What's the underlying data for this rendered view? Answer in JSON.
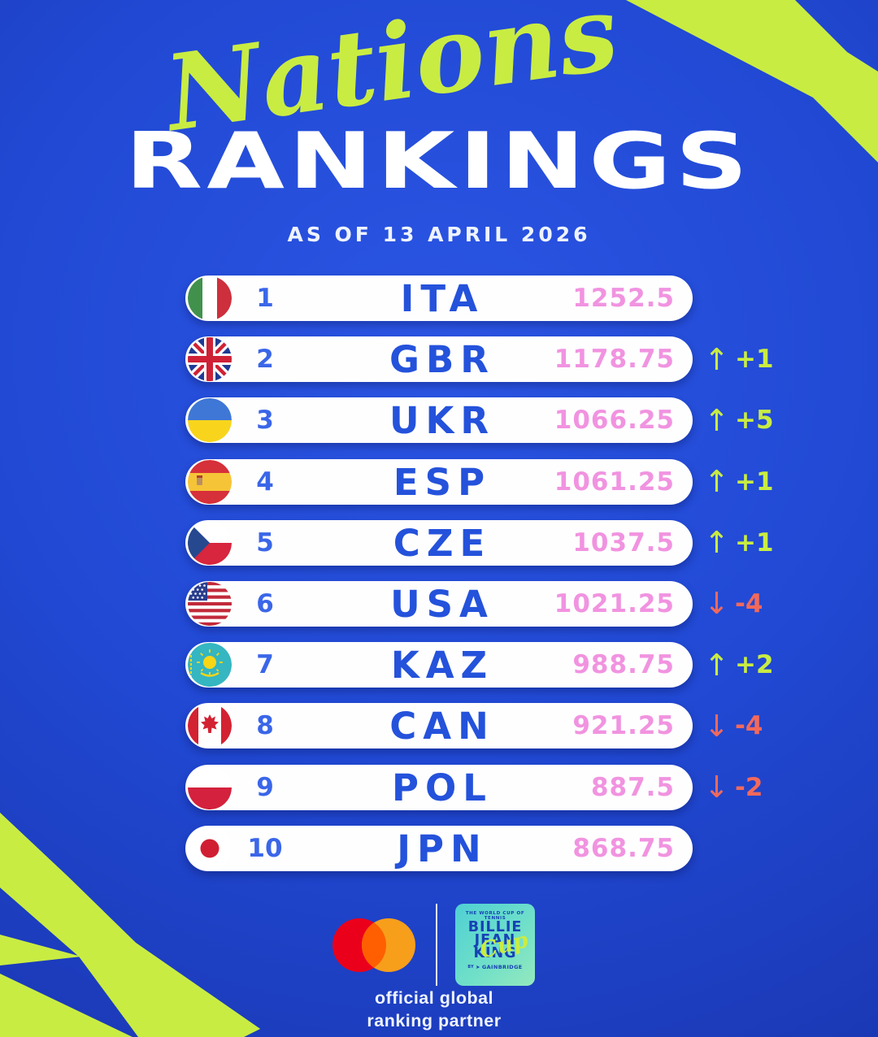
{
  "poster": {
    "title_script": "Nations",
    "title_main": "RANKINGS",
    "date_line": "AS OF 13 APRIL 2026"
  },
  "icons": {
    "up_arrow": "↑",
    "down_arrow": "↓",
    "play_arrow": "➤"
  },
  "colors": {
    "background_blue": "#2149d4",
    "brand_lime": "#c9ec43",
    "pill_white": "#fefeff",
    "country_blue": "#2452db",
    "points_pink": "#f193e0",
    "up_green": "#c9ec43",
    "down_red": "#f2695c"
  },
  "chart_data": {
    "type": "table",
    "title": "Nations Rankings",
    "subtitle": "As of 13 April 2026",
    "columns": [
      "rank",
      "country",
      "points",
      "movement"
    ],
    "rows": [
      [
        "1",
        "ITA",
        "1252.5",
        null
      ],
      [
        "2",
        "GBR",
        "1178.75",
        "+1"
      ],
      [
        "3",
        "UKR",
        "1066.25",
        "+5"
      ],
      [
        "4",
        "ESP",
        "1061.25",
        "+1"
      ],
      [
        "5",
        "CZE",
        "1037.5",
        "+1"
      ],
      [
        "6",
        "USA",
        "1021.25",
        "-4"
      ],
      [
        "7",
        "KAZ",
        "988.75",
        "+2"
      ],
      [
        "8",
        "CAN",
        "921.25",
        "-4"
      ],
      [
        "9",
        "POL",
        "887.5",
        "-2"
      ],
      [
        "10",
        "JPN",
        "868.75",
        null
      ]
    ]
  },
  "footer": {
    "bjk_logo": {
      "tagline": "THE WORLD CUP OF TENNIS",
      "line1": "BILLIE",
      "line2": "JEAN",
      "line3": "KING",
      "script": "Cup",
      "byline": "BY",
      "brand": "GAINBRIDGE"
    },
    "partner_line1": "official global",
    "partner_line2": "ranking partner"
  }
}
